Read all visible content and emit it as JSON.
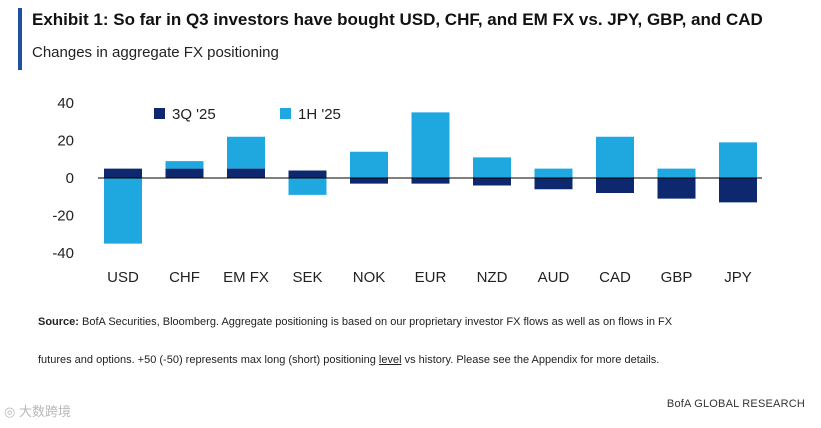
{
  "header": {
    "title": "Exhibit 1: So far in Q3 investors have bought USD, CHF, and EM FX vs. JPY, GBP, and CAD",
    "subtitle": "Changes in aggregate FX positioning"
  },
  "colors": {
    "accent": "#1f4fa0",
    "q3": "#0e2870",
    "h1": "#1fa8e0"
  },
  "chart_data": {
    "type": "bar",
    "stacked": true,
    "categories": [
      "USD",
      "CHF",
      "EM FX",
      "SEK",
      "NOK",
      "EUR",
      "NZD",
      "AUD",
      "CAD",
      "GBP",
      "JPY"
    ],
    "series": [
      {
        "name": "3Q '25",
        "values": [
          5,
          5,
          5,
          4,
          -3,
          -3,
          -4,
          -6,
          -8,
          -11,
          -13
        ]
      },
      {
        "name": "1H '25",
        "values": [
          -35,
          4,
          17,
          -9,
          14,
          35,
          11,
          5,
          22,
          5,
          19
        ]
      }
    ],
    "yticks": [
      "40",
      "20",
      "0",
      "-20",
      "-40"
    ],
    "ylim": [
      -40,
      40
    ],
    "legend_position": "top-left"
  },
  "notes": {
    "source_label": "Source:",
    "source_text": "BofA Securities, Bloomberg. Aggregate positioning is based on our proprietary investor FX flows as well as on flows in FX",
    "line2_before": "futures and options. +50 (-50) represents max long (short) positioning ",
    "line2_underlined": "level",
    "line2_after": " vs history. Please see the Appendix for more details."
  },
  "footer": {
    "watermark": "大数跨境",
    "brand": "BofA GLOBAL RESEARCH"
  }
}
